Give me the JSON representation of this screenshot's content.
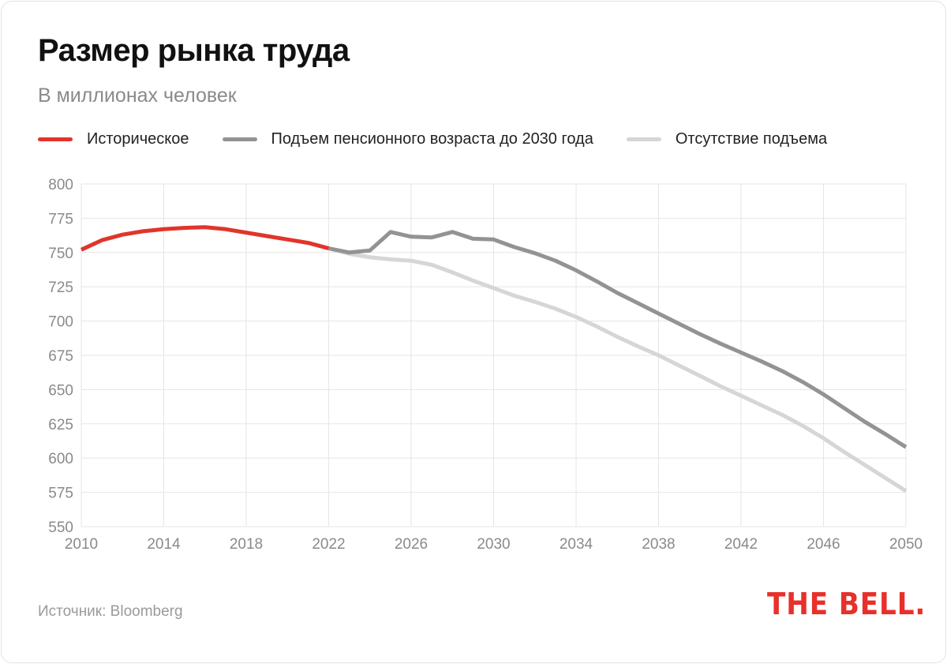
{
  "colors": {
    "historical": "#e0352b",
    "raised": "#939393",
    "no_raise": "#d6d6d6",
    "grid": "#e6e6e6",
    "logo": "#e8302a"
  },
  "footer": {
    "source": "Источник: Bloomberg",
    "logo": "THE BELL."
  },
  "chart_data": {
    "type": "line",
    "title": "Размер рынка труда",
    "subtitle": "В миллионах человек",
    "xlabel": "",
    "ylabel": "",
    "xlim": [
      2010,
      2050
    ],
    "ylim": [
      550,
      800
    ],
    "grid": true,
    "legend_position": "top",
    "x_ticks": [
      "2010",
      "2014",
      "2018",
      "2022",
      "2026",
      "2030",
      "2034",
      "2038",
      "2042",
      "2046",
      "2050"
    ],
    "y_ticks": [
      "800",
      "775",
      "750",
      "725",
      "700",
      "675",
      "650",
      "625",
      "600",
      "575",
      "550"
    ],
    "series": [
      {
        "name": "Историческое",
        "color": "#e0352b",
        "x": [
          2010,
          2011,
          2012,
          2013,
          2014,
          2015,
          2016,
          2017,
          2018,
          2019,
          2020,
          2021,
          2022
        ],
        "values": [
          752,
          759,
          763,
          765.5,
          767,
          768,
          768.5,
          767,
          764.5,
          762,
          759.5,
          757,
          753
        ]
      },
      {
        "name": "Подъем пенсионного возраста до 2030 года",
        "color": "#939393",
        "x": [
          2022,
          2023,
          2024,
          2025,
          2026,
          2027,
          2028,
          2029,
          2030,
          2031,
          2032,
          2033,
          2034,
          2035,
          2036,
          2037,
          2038,
          2039,
          2040,
          2041,
          2042,
          2043,
          2044,
          2045,
          2046,
          2047,
          2048,
          2049,
          2050
        ],
        "values": [
          753,
          750,
          751.5,
          765,
          761.5,
          761,
          765,
          760,
          759.5,
          754,
          749.5,
          744,
          737,
          729,
          720.5,
          713,
          705.5,
          698,
          690.5,
          683.5,
          677,
          670.5,
          663.5,
          655.5,
          646.5,
          636.5,
          626.5,
          617.5,
          608
        ]
      },
      {
        "name": "Отсутствие подъема",
        "color": "#d6d6d6",
        "x": [
          2022,
          2023,
          2024,
          2025,
          2026,
          2027,
          2028,
          2029,
          2030,
          2031,
          2032,
          2033,
          2034,
          2035,
          2036,
          2037,
          2038,
          2039,
          2040,
          2041,
          2042,
          2043,
          2044,
          2045,
          2046,
          2047,
          2048,
          2049,
          2050
        ],
        "values": [
          753,
          749,
          746.5,
          745,
          744,
          741,
          735.5,
          729.5,
          724,
          718.5,
          714,
          709,
          703,
          696,
          688.5,
          681.5,
          675,
          667.5,
          660,
          652.5,
          645.5,
          638.5,
          631.5,
          623.5,
          614.5,
          604.5,
          595,
          585.5,
          576
        ]
      }
    ]
  }
}
